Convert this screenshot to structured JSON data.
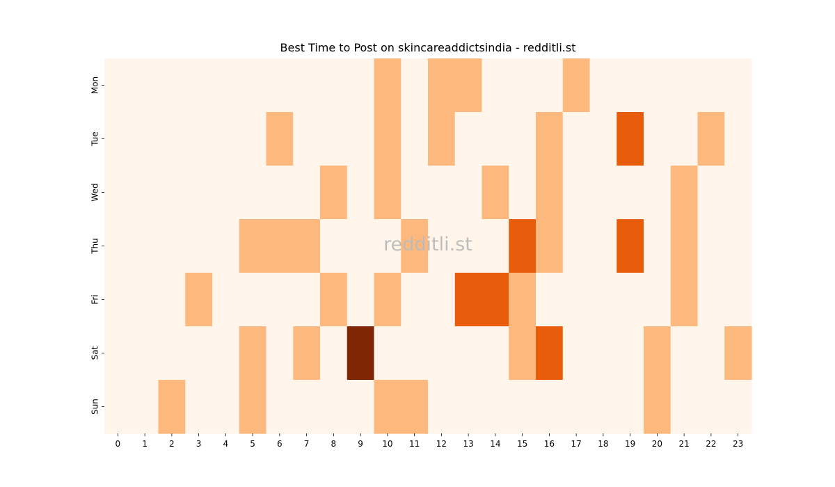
{
  "chart_data": {
    "type": "heatmap",
    "title": "Best Time to Post on skincareaddictsindia - redditli.st",
    "watermark": "redditli.st",
    "xlabel": "",
    "ylabel": "",
    "x": [
      "0",
      "1",
      "2",
      "3",
      "4",
      "5",
      "6",
      "7",
      "8",
      "9",
      "10",
      "11",
      "12",
      "13",
      "14",
      "15",
      "16",
      "17",
      "18",
      "19",
      "20",
      "21",
      "22",
      "23"
    ],
    "y": [
      "Mon",
      "Tue",
      "Wed",
      "Thu",
      "Fri",
      "Sat",
      "Sun"
    ],
    "colormap": "Oranges",
    "level_colors": [
      "#fff5eb",
      "#fdb97d",
      "#e85d0c",
      "#7f2704"
    ],
    "values": [
      [
        0,
        0,
        0,
        0,
        0,
        0,
        0,
        0,
        0,
        0,
        1,
        0,
        1,
        1,
        0,
        0,
        0,
        1,
        0,
        0,
        0,
        0,
        0,
        0
      ],
      [
        0,
        0,
        0,
        0,
        0,
        0,
        1,
        0,
        0,
        0,
        1,
        0,
        1,
        0,
        0,
        0,
        1,
        0,
        0,
        2,
        0,
        0,
        1,
        0
      ],
      [
        0,
        0,
        0,
        0,
        0,
        0,
        0,
        0,
        1,
        0,
        1,
        0,
        0,
        0,
        1,
        0,
        1,
        0,
        0,
        0,
        0,
        1,
        0,
        0
      ],
      [
        0,
        0,
        0,
        0,
        0,
        1,
        1,
        1,
        0,
        0,
        0,
        1,
        0,
        0,
        0,
        2,
        1,
        0,
        0,
        2,
        0,
        1,
        0,
        0
      ],
      [
        0,
        0,
        0,
        1,
        0,
        0,
        0,
        0,
        1,
        0,
        1,
        0,
        0,
        2,
        2,
        1,
        0,
        0,
        0,
        0,
        0,
        1,
        0,
        0
      ],
      [
        0,
        0,
        0,
        0,
        0,
        1,
        0,
        1,
        0,
        3,
        0,
        0,
        0,
        0,
        0,
        1,
        2,
        0,
        0,
        0,
        1,
        0,
        0,
        1
      ],
      [
        0,
        0,
        1,
        0,
        0,
        1,
        0,
        0,
        0,
        0,
        1,
        1,
        0,
        0,
        0,
        0,
        0,
        0,
        0,
        0,
        1,
        0,
        0,
        0
      ]
    ],
    "colorbar": false,
    "grid": false
  }
}
